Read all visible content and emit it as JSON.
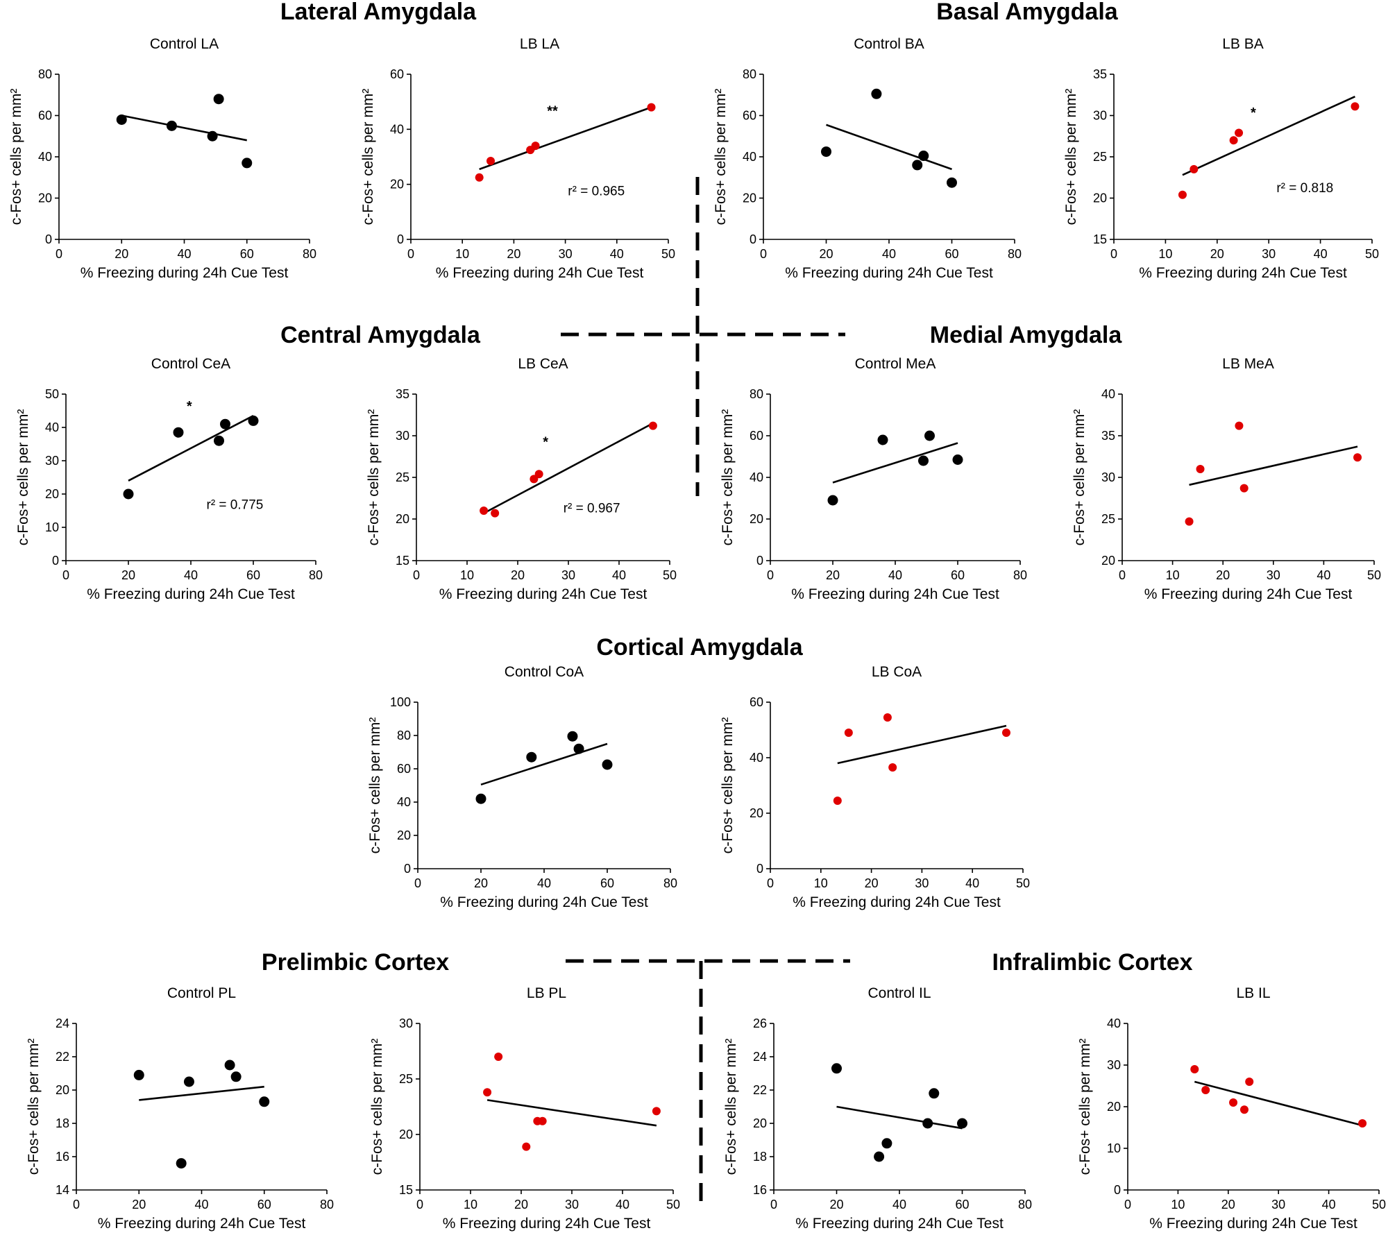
{
  "colors": {
    "control": "#000000",
    "lb": "#e00000"
  },
  "sections": [
    {
      "id": "lateral",
      "title": "Lateral Amygdala"
    },
    {
      "id": "basal",
      "title": "Basal Amygdala"
    },
    {
      "id": "central",
      "title": "Central Amygdala"
    },
    {
      "id": "medial",
      "title": "Medial Amygdala"
    },
    {
      "id": "cortical",
      "title": "Cortical Amygdala"
    },
    {
      "id": "prelimbic",
      "title": "Prelimbic Cortex"
    },
    {
      "id": "infralimbic",
      "title": "Infralimbic Cortex"
    }
  ],
  "chart_data": [
    {
      "id": "control-la",
      "type": "scatter",
      "title": "Control LA",
      "group": "control",
      "xlabel": "% Freezing during 24h Cue Test",
      "ylabel": "c-Fos+ cells per mm²",
      "xlim": [
        0,
        80
      ],
      "xticks": [
        0,
        20,
        40,
        60,
        80
      ],
      "ylim": [
        0,
        80
      ],
      "yticks": [
        0,
        20,
        40,
        60,
        80
      ],
      "points": [
        [
          20,
          58
        ],
        [
          36,
          55
        ],
        [
          49,
          50
        ],
        [
          51,
          68
        ],
        [
          60,
          37
        ]
      ],
      "fit": [
        [
          20,
          60
        ],
        [
          60,
          48
        ]
      ]
    },
    {
      "id": "lb-la",
      "type": "scatter",
      "title": "LB LA",
      "group": "lb",
      "xlabel": "% Freezing during 24h Cue Test",
      "ylabel": "c-Fos+ cells per mm²",
      "xlim": [
        0,
        50
      ],
      "xticks": [
        0,
        10,
        20,
        30,
        40,
        50
      ],
      "ylim": [
        0,
        60
      ],
      "yticks": [
        0,
        20,
        40,
        60
      ],
      "points": [
        [
          13.3,
          22.5
        ],
        [
          15.5,
          28.5
        ],
        [
          23.2,
          32.5
        ],
        [
          24.2,
          34
        ],
        [
          46.7,
          48
        ]
      ],
      "fit": [
        [
          13.3,
          25.5
        ],
        [
          46.7,
          48
        ]
      ],
      "significance": "**",
      "sig_pos": [
        27.5,
        45
      ],
      "r2": "r² = 0.965",
      "r2_pos": [
        30.5,
        16
      ]
    },
    {
      "id": "control-ba",
      "type": "scatter",
      "title": "Control BA",
      "group": "control",
      "xlabel": "% Freezing during 24h Cue Test",
      "ylabel": "c-Fos+ cells per mm²",
      "xlim": [
        0,
        80
      ],
      "xticks": [
        0,
        20,
        40,
        60,
        80
      ],
      "ylim": [
        0,
        80
      ],
      "yticks": [
        0,
        20,
        40,
        60,
        80
      ],
      "points": [
        [
          20,
          42.5
        ],
        [
          36,
          70.5
        ],
        [
          49,
          36
        ],
        [
          51,
          40.5
        ],
        [
          60,
          27.5
        ]
      ],
      "fit": [
        [
          20,
          55.5
        ],
        [
          60,
          34
        ]
      ]
    },
    {
      "id": "lb-ba",
      "type": "scatter",
      "title": "LB BA",
      "group": "lb",
      "xlabel": "% Freezing during 24h Cue Test",
      "ylabel": "c-Fos+ cells per mm²",
      "xlim": [
        0,
        50
      ],
      "xticks": [
        0,
        10,
        20,
        30,
        40,
        50
      ],
      "ylim": [
        15,
        35
      ],
      "yticks": [
        15,
        20,
        25,
        30,
        35
      ],
      "points": [
        [
          13.3,
          20.4
        ],
        [
          15.5,
          23.5
        ],
        [
          23.2,
          27
        ],
        [
          24.2,
          27.9
        ],
        [
          46.7,
          31.1
        ]
      ],
      "fit": [
        [
          13.3,
          22.8
        ],
        [
          46.7,
          32.3
        ]
      ],
      "significance": "*",
      "sig_pos": [
        27,
        29.8
      ],
      "r2": "r² = 0.818",
      "r2_pos": [
        31.5,
        20.7
      ]
    },
    {
      "id": "control-cea",
      "type": "scatter",
      "title": "Control CeA",
      "group": "control",
      "xlabel": "% Freezing during 24h Cue Test",
      "ylabel": "c-Fos+ cells per mm²",
      "xlim": [
        0,
        80
      ],
      "xticks": [
        0,
        20,
        40,
        60,
        80
      ],
      "ylim": [
        0,
        50
      ],
      "yticks": [
        0,
        10,
        20,
        30,
        40,
        50
      ],
      "points": [
        [
          20,
          20
        ],
        [
          36,
          38.5
        ],
        [
          49,
          36
        ],
        [
          51,
          41
        ],
        [
          60,
          42
        ]
      ],
      "fit": [
        [
          20,
          24
        ],
        [
          60,
          43.5
        ]
      ],
      "significance": "*",
      "sig_pos": [
        39.5,
        45
      ],
      "r2": "r² = 0.775",
      "r2_pos": [
        45,
        15.5
      ]
    },
    {
      "id": "lb-cea",
      "type": "scatter",
      "title": "LB CeA",
      "group": "lb",
      "xlabel": "% Freezing during 24h Cue Test",
      "ylabel": "c-Fos+ cells per mm²",
      "xlim": [
        0,
        50
      ],
      "xticks": [
        0,
        10,
        20,
        30,
        40,
        50
      ],
      "ylim": [
        15,
        35
      ],
      "yticks": [
        15,
        20,
        25,
        30,
        35
      ],
      "points": [
        [
          13.3,
          21
        ],
        [
          15.5,
          20.7
        ],
        [
          23.2,
          24.8
        ],
        [
          24.2,
          25.4
        ],
        [
          46.7,
          31.2
        ]
      ],
      "fit": [
        [
          13.3,
          20.7
        ],
        [
          46.7,
          31.5
        ]
      ],
      "significance": "*",
      "sig_pos": [
        25.5,
        28.7
      ],
      "r2": "r² = 0.967",
      "r2_pos": [
        29,
        20.8
      ]
    },
    {
      "id": "control-mea",
      "type": "scatter",
      "title": "Control MeA",
      "group": "control",
      "xlabel": "% Freezing during 24h Cue Test",
      "ylabel": "c-Fos+ cells per mm²",
      "xlim": [
        0,
        80
      ],
      "xticks": [
        0,
        20,
        40,
        60,
        80
      ],
      "ylim": [
        0,
        80
      ],
      "yticks": [
        0,
        20,
        40,
        60,
        80
      ],
      "points": [
        [
          20,
          29
        ],
        [
          36,
          58
        ],
        [
          49,
          48
        ],
        [
          51,
          60
        ],
        [
          60,
          48.5
        ]
      ],
      "fit": [
        [
          20,
          37.5
        ],
        [
          60,
          56.5
        ]
      ]
    },
    {
      "id": "lb-mea",
      "type": "scatter",
      "title": "LB MeA",
      "group": "lb",
      "xlabel": "% Freezing during 24h Cue Test",
      "ylabel": "c-Fos+ cells per mm²",
      "xlim": [
        0,
        50
      ],
      "xticks": [
        0,
        10,
        20,
        30,
        40,
        50
      ],
      "ylim": [
        20,
        40
      ],
      "yticks": [
        20,
        25,
        30,
        35,
        40
      ],
      "points": [
        [
          13.3,
          24.7
        ],
        [
          15.5,
          31
        ],
        [
          23.2,
          36.2
        ],
        [
          24.2,
          28.7
        ],
        [
          46.7,
          32.4
        ]
      ],
      "fit": [
        [
          13.3,
          29.1
        ],
        [
          46.7,
          33.7
        ]
      ]
    },
    {
      "id": "control-coa",
      "type": "scatter",
      "title": "Control CoA",
      "group": "control",
      "xlabel": "% Freezing during 24h Cue Test",
      "ylabel": "c-Fos+ cells per mm²",
      "xlim": [
        0,
        80
      ],
      "xticks": [
        0,
        20,
        40,
        60,
        80
      ],
      "ylim": [
        0,
        100
      ],
      "yticks": [
        0,
        20,
        40,
        60,
        80,
        100
      ],
      "points": [
        [
          20,
          42
        ],
        [
          36,
          67
        ],
        [
          49,
          79.5
        ],
        [
          51,
          72
        ],
        [
          60,
          62.5
        ]
      ],
      "fit": [
        [
          20,
          50.5
        ],
        [
          60,
          75
        ]
      ]
    },
    {
      "id": "lb-coa",
      "type": "scatter",
      "title": "LB CoA",
      "group": "lb",
      "xlabel": "% Freezing during 24h Cue Test",
      "ylabel": "c-Fos+ cells per mm²",
      "xlim": [
        0,
        50
      ],
      "xticks": [
        0,
        10,
        20,
        30,
        40,
        50
      ],
      "ylim": [
        0,
        60
      ],
      "yticks": [
        0,
        20,
        40,
        60
      ],
      "points": [
        [
          13.3,
          24.5
        ],
        [
          15.5,
          49
        ],
        [
          23.2,
          54.5
        ],
        [
          24.2,
          36.5
        ],
        [
          46.7,
          49
        ]
      ],
      "fit": [
        [
          13.3,
          38
        ],
        [
          46.7,
          51.5
        ]
      ]
    },
    {
      "id": "control-pl",
      "type": "scatter",
      "title": "Control PL",
      "group": "control",
      "xlabel": "% Freezing during 24h Cue Test",
      "ylabel": "c-Fos+ cells per mm²",
      "xlim": [
        0,
        80
      ],
      "xticks": [
        0,
        20,
        40,
        60,
        80
      ],
      "ylim": [
        14,
        24
      ],
      "yticks": [
        14,
        16,
        18,
        20,
        22,
        24
      ],
      "points": [
        [
          20,
          20.9
        ],
        [
          33.5,
          15.6
        ],
        [
          36,
          20.5
        ],
        [
          49,
          21.5
        ],
        [
          51,
          20.8
        ],
        [
          60,
          19.3
        ]
      ],
      "fit": [
        [
          20,
          19.4
        ],
        [
          60,
          20.2
        ]
      ]
    },
    {
      "id": "lb-pl",
      "type": "scatter",
      "title": "LB PL",
      "group": "lb",
      "xlabel": "% Freezing during 24h Cue Test",
      "ylabel": "c-Fos+ cells per mm²",
      "xlim": [
        0,
        50
      ],
      "xticks": [
        0,
        10,
        20,
        30,
        40,
        50
      ],
      "ylim": [
        15,
        30
      ],
      "yticks": [
        15,
        20,
        25,
        30
      ],
      "points": [
        [
          13.3,
          23.8
        ],
        [
          15.5,
          27
        ],
        [
          21,
          18.9
        ],
        [
          23.2,
          21.2
        ],
        [
          24.2,
          21.2
        ],
        [
          46.7,
          22.1
        ]
      ],
      "fit": [
        [
          13.3,
          23.1
        ],
        [
          46.7,
          20.8
        ]
      ]
    },
    {
      "id": "control-il",
      "type": "scatter",
      "title": "Control IL",
      "group": "control",
      "xlabel": "% Freezing during 24h Cue Test",
      "ylabel": "c-Fos+ cells per mm²",
      "xlim": [
        0,
        80
      ],
      "xticks": [
        0,
        20,
        40,
        60,
        80
      ],
      "ylim": [
        16,
        26
      ],
      "yticks": [
        16,
        18,
        20,
        22,
        24,
        26
      ],
      "points": [
        [
          20,
          23.3
        ],
        [
          33.5,
          18
        ],
        [
          36,
          18.8
        ],
        [
          49,
          20
        ],
        [
          51,
          21.8
        ],
        [
          60,
          20
        ]
      ],
      "fit": [
        [
          20,
          21
        ],
        [
          60,
          19.7
        ]
      ]
    },
    {
      "id": "lb-il",
      "type": "scatter",
      "title": "LB IL",
      "group": "lb",
      "xlabel": "% Freezing during 24h Cue Test",
      "ylabel": "c-Fos+ cells per mm²",
      "xlim": [
        0,
        50
      ],
      "xticks": [
        0,
        10,
        20,
        30,
        40,
        50
      ],
      "ylim": [
        0,
        40
      ],
      "yticks": [
        0,
        10,
        20,
        30,
        40
      ],
      "points": [
        [
          13.3,
          29
        ],
        [
          15.5,
          24
        ],
        [
          21,
          21
        ],
        [
          23.2,
          19.3
        ],
        [
          24.2,
          26
        ],
        [
          46.7,
          16
        ]
      ],
      "fit": [
        [
          13.3,
          26
        ],
        [
          46.7,
          15.5
        ]
      ]
    }
  ]
}
